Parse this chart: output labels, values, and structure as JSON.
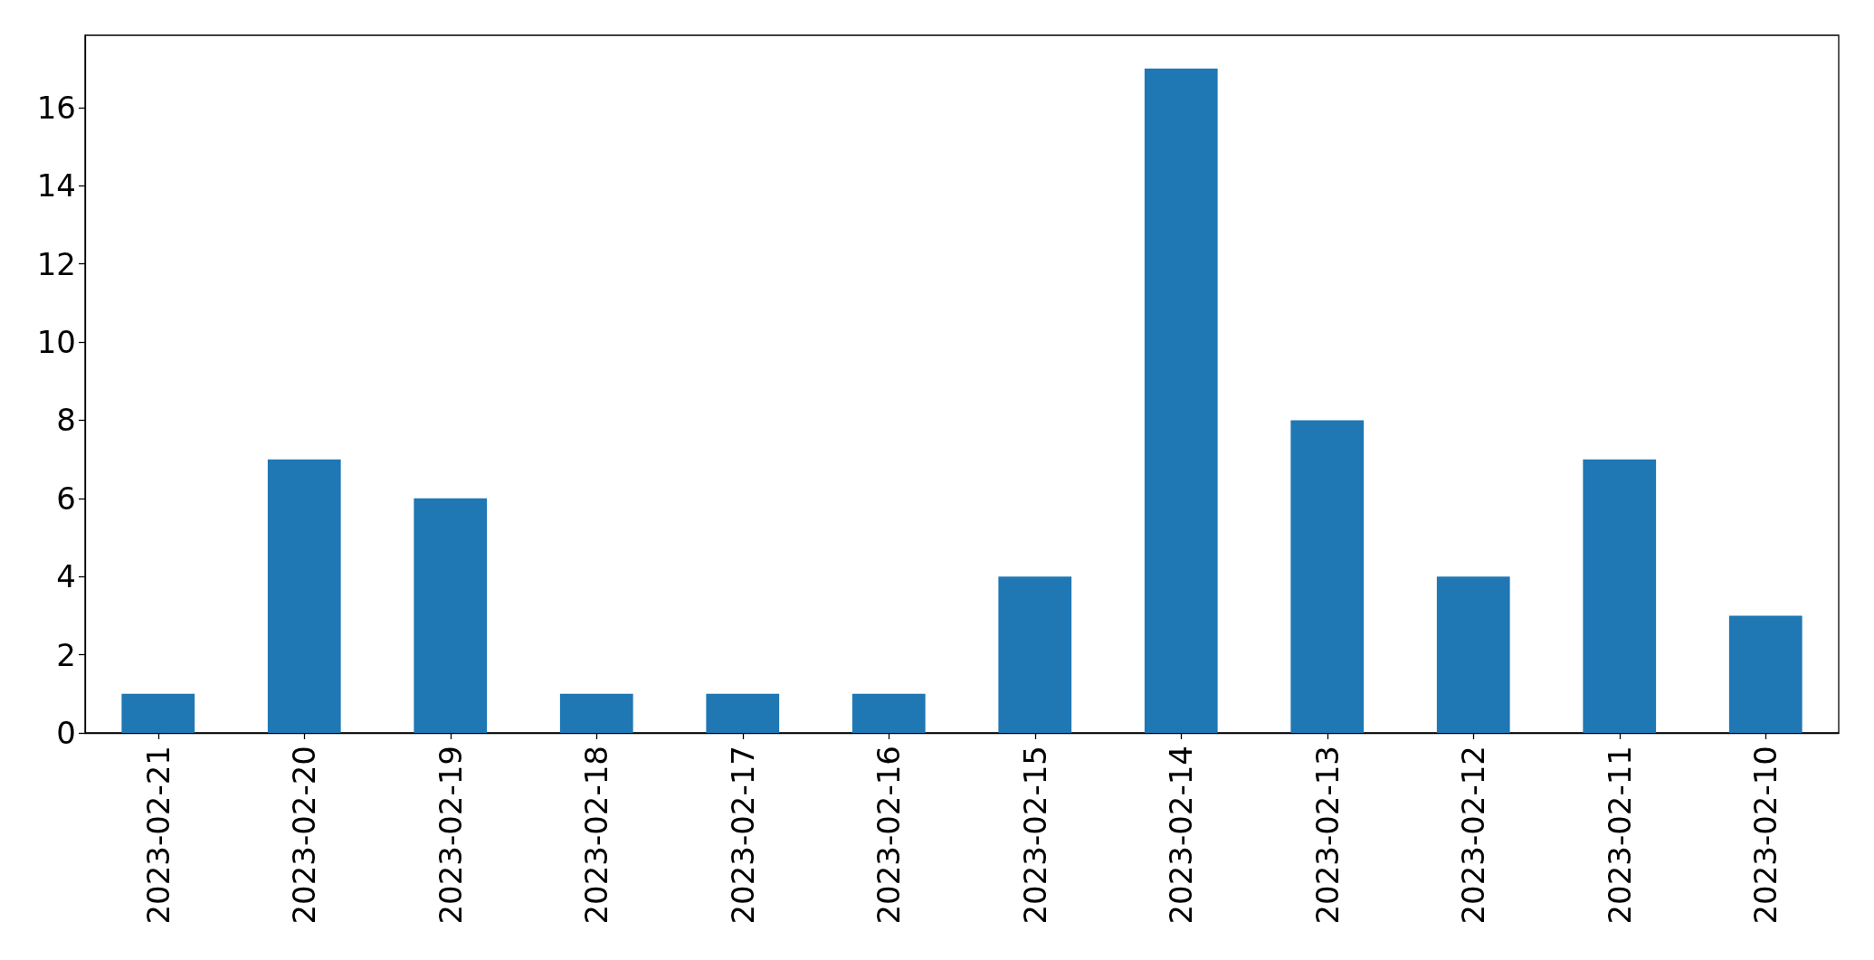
{
  "chart_data": {
    "type": "bar",
    "categories": [
      "2023-02-21",
      "2023-02-20",
      "2023-02-19",
      "2023-02-18",
      "2023-02-17",
      "2023-02-16",
      "2023-02-15",
      "2023-02-14",
      "2023-02-13",
      "2023-02-12",
      "2023-02-11",
      "2023-02-10"
    ],
    "values": [
      1,
      7,
      6,
      1,
      1,
      1,
      4,
      17,
      8,
      4,
      7,
      3
    ],
    "color": "#1f77b4",
    "ylim": [
      0,
      17.85
    ],
    "yticks": [
      0,
      2,
      4,
      6,
      8,
      10,
      12,
      14,
      16
    ],
    "grid": false
  }
}
